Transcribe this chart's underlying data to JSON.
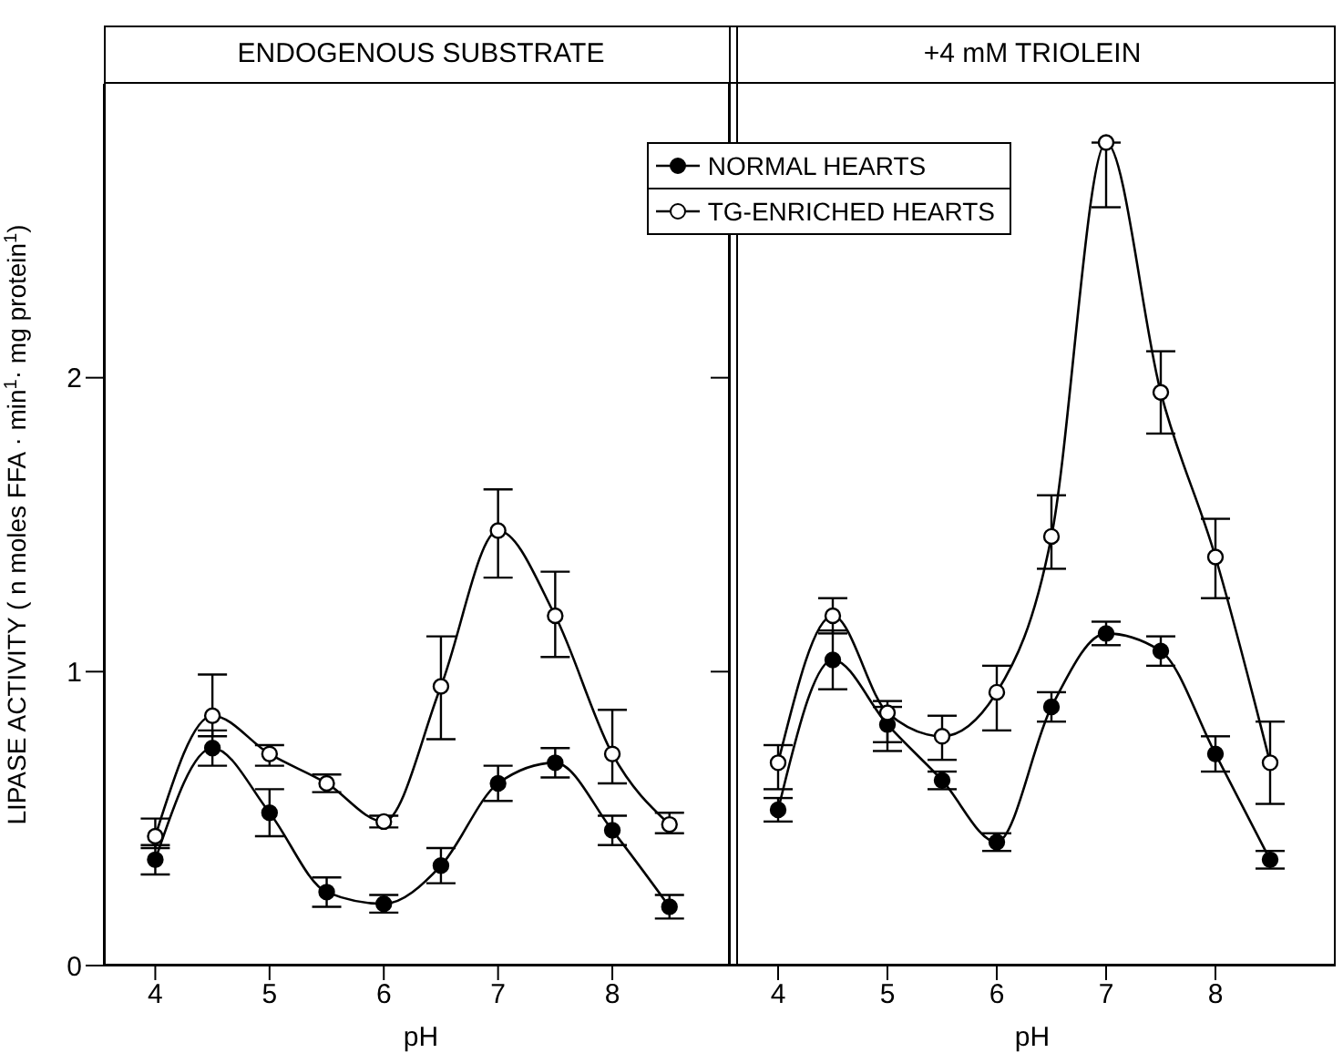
{
  "chart_data": [
    {
      "type": "line",
      "title": "ENDOGENOUS SUBSTRATE",
      "xlabel": "pH",
      "ylabel": "LIPASE ACTIVITY ( n moles FFA · min$^{1}$· mg protein$^{1}$)",
      "x": [
        4,
        4.5,
        5,
        5.5,
        6,
        6.5,
        7,
        7.5,
        8,
        8.5
      ],
      "series": [
        {
          "name": "NORMAL HEARTS",
          "color": "#000000",
          "values": [
            0.36,
            0.74,
            0.52,
            0.25,
            0.21,
            0.34,
            0.62,
            0.69,
            0.46,
            0.2
          ],
          "errors": [
            0.05,
            0.06,
            0.08,
            0.05,
            0.03,
            0.06,
            0.06,
            0.05,
            0.05,
            0.04
          ]
        },
        {
          "name": "TG-ENRICHED HEARTS",
          "color": "#000000",
          "values": [
            0.44,
            0.85,
            0.72,
            0.62,
            0.49,
            0.95,
            1.48,
            1.19,
            0.72,
            0.48
          ],
          "errors": [
            [
              0.4,
              0.5
            ],
            [
              0.78,
              0.99
            ],
            [
              0.68,
              0.75
            ],
            [
              0.59,
              0.65
            ],
            [
              0.47,
              0.51
            ],
            [
              0.77,
              1.12
            ],
            [
              1.32,
              1.62
            ],
            [
              1.05,
              1.34
            ],
            [
              0.62,
              0.87
            ],
            [
              0.45,
              0.52
            ]
          ]
        }
      ],
      "xlim": [
        3.55,
        9.1
      ],
      "xticks": [
        4,
        5,
        6,
        7,
        8
      ],
      "ylim": [
        0,
        3
      ],
      "yticks": [
        0,
        1,
        2
      ],
      "legend": "top right",
      "marker": "circle",
      "grid": false
    },
    {
      "type": "line",
      "title": "+4 mM TRIOLEIN",
      "xlabel": "pH",
      "x": [
        4,
        4.5,
        5,
        5.5,
        6,
        6.5,
        7,
        7.5,
        8,
        8.5
      ],
      "series": [
        {
          "color": "#000000",
          "values": [
            0.53,
            1.04,
            0.82,
            0.63,
            0.42,
            0.88,
            1.13,
            1.07,
            0.72,
            0.36
          ],
          "errors": [
            0.04,
            0.1,
            0.06,
            0.03,
            0.03,
            0.05,
            0.04,
            0.05,
            0.06,
            0.03
          ]
        },
        {
          "color": "#000000",
          "values": [
            0.69,
            1.19,
            0.86,
            0.78,
            0.93,
            1.46,
            2.8,
            1.95,
            1.39,
            0.69
          ],
          "errors": [
            [
              0.6,
              0.75
            ],
            0.06,
            [
              0.73,
              0.9
            ],
            [
              0.7,
              0.85
            ],
            [
              0.8,
              1.02
            ],
            [
              1.35,
              1.6
            ],
            [
              2.58,
              2.8
            ],
            [
              1.81,
              2.09
            ],
            [
              1.25,
              1.52
            ],
            [
              0.55,
              0.83
            ]
          ]
        }
      ],
      "xlim": [
        3.55,
        9.1
      ],
      "xticks": [
        4,
        5,
        6,
        7,
        8
      ],
      "ylim": [
        0,
        3
      ],
      "yticks": [
        0,
        1,
        2
      ],
      "tick_labels": "x",
      "marker": "circle",
      "grid": false
    }
  ]
}
